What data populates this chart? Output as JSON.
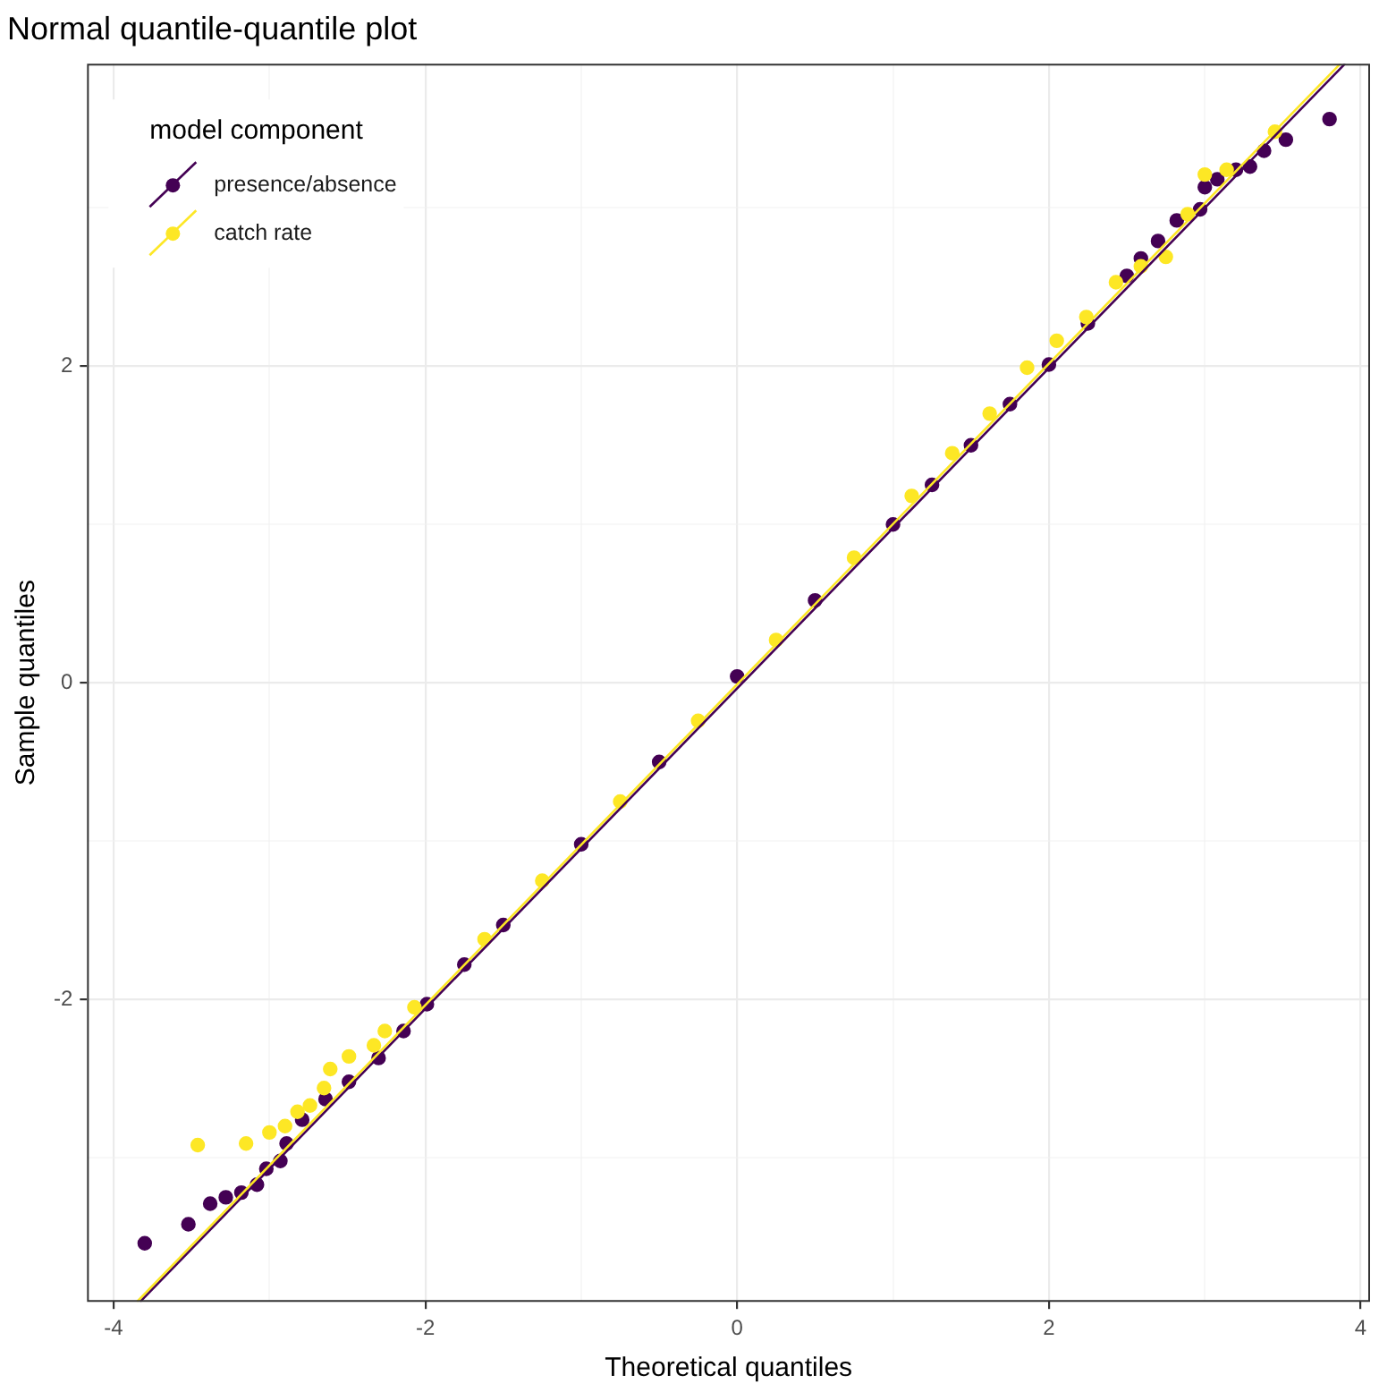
{
  "chart_data": {
    "type": "scatter",
    "title": "Normal quantile-quantile plot",
    "xlabel": "Theoretical quantiles",
    "ylabel": "Sample quantiles",
    "legend_title": "model component",
    "legend": "top left",
    "grid": true,
    "xlim": [
      -4.17,
      4.06
    ],
    "ylim": [
      -3.91,
      3.91
    ],
    "xticks": [
      -4,
      {
        "value": -3,
        "label": null
      },
      -2,
      {
        "value": -1,
        "label": null
      },
      0,
      {
        "value": 1,
        "label": null
      },
      2,
      {
        "value": 3,
        "label": null
      },
      4
    ],
    "yticks": [
      {
        "value": -3,
        "label": null
      },
      -2,
      {
        "value": -1,
        "label": null
      },
      0,
      {
        "value": 1,
        "label": null
      },
      2,
      {
        "value": 3,
        "label": null
      }
    ],
    "series": [
      {
        "name": "presence/absence",
        "color": "#440154",
        "marker": "circle",
        "x": [
          -3.8,
          -3.52,
          -3.38,
          -3.28,
          -3.18,
          -3.08,
          -3.02,
          -2.93,
          -2.89,
          -2.79,
          -2.64,
          -2.49,
          -2.3,
          -2.14,
          -1.99,
          -1.75,
          -1.5,
          -1,
          -0.5,
          0,
          0.5,
          1,
          1.25,
          1.5,
          1.75,
          2,
          2.25,
          2.5,
          2.59,
          2.7,
          2.82,
          2.97,
          3,
          3.08,
          3.2,
          3.29,
          3.38,
          3.52,
          3.8
        ],
        "values": [
          -3.54,
          -3.42,
          -3.29,
          -3.25,
          -3.22,
          -3.17,
          -3.07,
          -3.02,
          -2.91,
          -2.76,
          -2.63,
          -2.52,
          -2.37,
          -2.2,
          -2.03,
          -1.78,
          -1.53,
          -1.02,
          -0.5,
          0.04,
          0.52,
          1,
          1.25,
          1.5,
          1.76,
          2.01,
          2.27,
          2.57,
          2.68,
          2.79,
          2.92,
          2.99,
          3.13,
          3.18,
          3.24,
          3.26,
          3.36,
          3.43,
          3.56
        ]
      },
      {
        "name": "catch rate",
        "color": "#fde725",
        "marker": "circle",
        "x": [
          -3.46,
          -3.15,
          -3,
          -2.9,
          -2.82,
          -2.74,
          -2.65,
          -2.61,
          -2.49,
          -2.33,
          -2.26,
          -2.07,
          -1.62,
          -1.25,
          -0.75,
          -0.25,
          0.25,
          0.75,
          1.12,
          1.38,
          1.62,
          1.86,
          2.05,
          2.24,
          2.43,
          2.59,
          2.75,
          2.89,
          3,
          3.14,
          3.45
        ],
        "values": [
          -2.92,
          -2.91,
          -2.84,
          -2.8,
          -2.71,
          -2.67,
          -2.56,
          -2.44,
          -2.36,
          -2.29,
          -2.2,
          -2.05,
          -1.62,
          -1.25,
          -0.75,
          -0.24,
          0.27,
          0.79,
          1.18,
          1.45,
          1.7,
          1.99,
          2.16,
          2.31,
          2.53,
          2.63,
          2.69,
          2.96,
          3.21,
          3.24,
          3.48
        ]
      },
      {
        "type": "line",
        "color": "#440154",
        "marker": "none",
        "x": [
          -3.83,
          3.9
        ],
        "values": [
          -3.91,
          3.91
        ]
      },
      {
        "type": "line",
        "color": "#fde725",
        "marker": "none",
        "x": [
          -3.85,
          3.87
        ],
        "values": [
          -3.91,
          3.91
        ]
      }
    ]
  }
}
